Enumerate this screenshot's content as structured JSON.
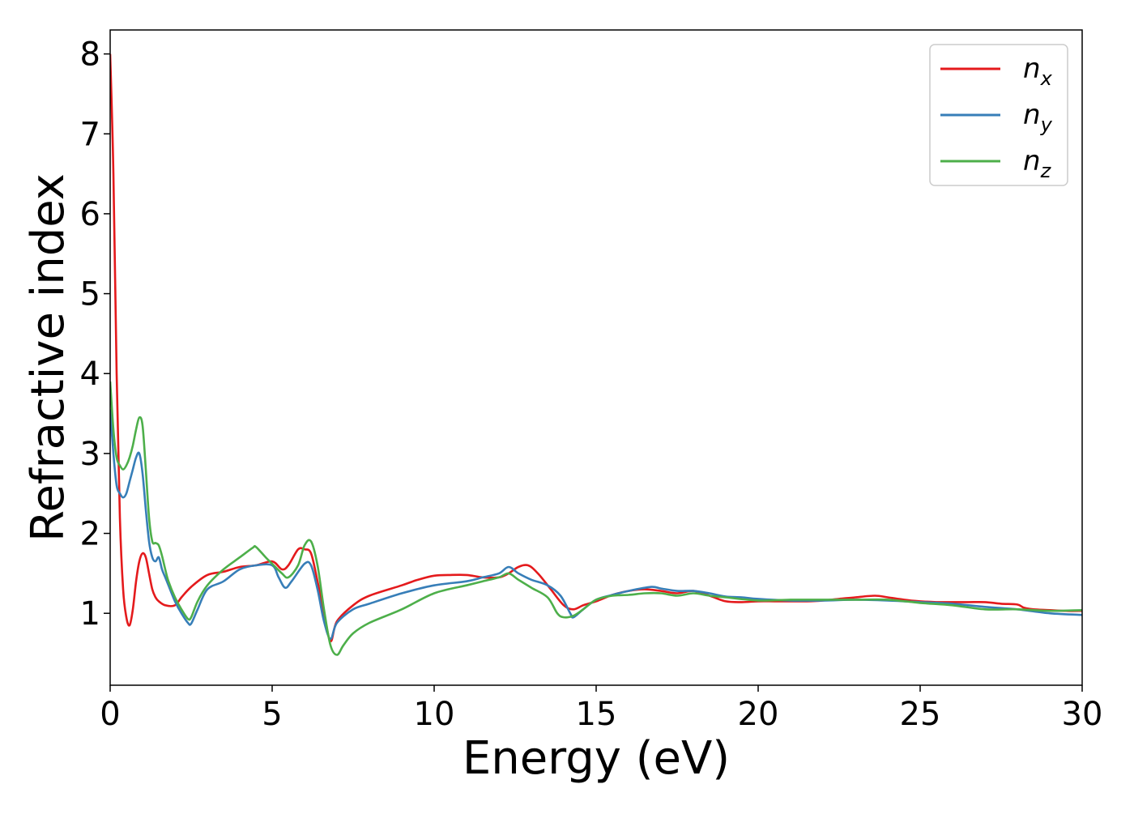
{
  "chart_data": {
    "type": "line",
    "title": "",
    "xlabel": "Energy (eV)",
    "ylabel": "Refractive index",
    "xlim": [
      0,
      30
    ],
    "ylim": [
      0.1,
      8.3
    ],
    "xticks": [
      "0",
      "5",
      "10",
      "15",
      "20",
      "25",
      "30"
    ],
    "yticks": [
      "1",
      "2",
      "3",
      "4",
      "5",
      "6",
      "7",
      "8"
    ],
    "grid": false,
    "legend_position": "top-right",
    "series": [
      {
        "name": "n_x",
        "legend_base": "n",
        "legend_sub": "x",
        "color": "#e41a1c",
        "x": [
          0.0,
          0.1,
          0.2,
          0.3,
          0.4,
          0.5,
          0.6,
          0.7,
          0.8,
          0.9,
          1.0,
          1.1,
          1.2,
          1.3,
          1.4,
          1.5,
          1.7,
          2.0,
          2.2,
          2.5,
          3.0,
          3.5,
          4.0,
          4.5,
          5.0,
          5.3,
          5.5,
          5.8,
          6.0,
          6.2,
          6.4,
          6.6,
          6.8,
          7.0,
          7.5,
          8.0,
          9.0,
          9.5,
          10.0,
          10.5,
          11.0,
          11.5,
          12.0,
          12.3,
          12.6,
          12.9,
          13.2,
          13.6,
          14.0,
          14.3,
          14.6,
          15.0,
          15.5,
          16.0,
          16.5,
          17.0,
          17.5,
          18.0,
          18.5,
          19.0,
          19.5,
          20.0,
          20.5,
          21.0,
          21.5,
          22.0,
          22.5,
          23.0,
          23.6,
          24.0,
          24.5,
          25.0,
          25.5,
          26.0,
          26.5,
          27.0,
          27.5,
          28.0,
          28.2,
          28.5,
          29.0,
          29.5,
          30.0
        ],
        "y": [
          8.0,
          6.5,
          4.0,
          2.2,
          1.3,
          0.95,
          0.85,
          1.05,
          1.4,
          1.65,
          1.75,
          1.7,
          1.5,
          1.3,
          1.2,
          1.15,
          1.1,
          1.1,
          1.2,
          1.33,
          1.48,
          1.52,
          1.58,
          1.6,
          1.65,
          1.55,
          1.6,
          1.8,
          1.8,
          1.75,
          1.4,
          1.0,
          0.65,
          0.9,
          1.1,
          1.22,
          1.35,
          1.42,
          1.47,
          1.48,
          1.48,
          1.45,
          1.45,
          1.5,
          1.58,
          1.6,
          1.5,
          1.3,
          1.1,
          1.05,
          1.1,
          1.15,
          1.23,
          1.28,
          1.3,
          1.28,
          1.25,
          1.28,
          1.22,
          1.15,
          1.14,
          1.15,
          1.15,
          1.15,
          1.15,
          1.16,
          1.18,
          1.2,
          1.22,
          1.2,
          1.17,
          1.15,
          1.14,
          1.14,
          1.14,
          1.14,
          1.12,
          1.11,
          1.07,
          1.05,
          1.04,
          1.03,
          1.03
        ]
      },
      {
        "name": "n_y",
        "legend_base": "n",
        "legend_sub": "y",
        "color": "#377eb8",
        "x": [
          0.0,
          0.1,
          0.2,
          0.3,
          0.4,
          0.5,
          0.6,
          0.7,
          0.8,
          0.9,
          1.0,
          1.1,
          1.2,
          1.3,
          1.4,
          1.5,
          1.6,
          1.7,
          1.8,
          2.0,
          2.2,
          2.4,
          2.5,
          2.7,
          3.0,
          3.5,
          4.0,
          4.5,
          5.0,
          5.2,
          5.4,
          5.6,
          6.0,
          6.2,
          6.4,
          6.6,
          6.8,
          7.0,
          7.5,
          8.0,
          9.0,
          10.0,
          11.0,
          11.5,
          12.0,
          12.3,
          12.6,
          13.0,
          13.5,
          13.9,
          14.2,
          14.3,
          14.6,
          15.0,
          15.5,
          16.0,
          16.7,
          17.0,
          17.5,
          18.0,
          18.5,
          19.0,
          19.5,
          20.0,
          21.0,
          22.0,
          23.0,
          24.0,
          25.0,
          26.0,
          27.0,
          28.0,
          29.0,
          30.0
        ],
        "y": [
          3.55,
          3.0,
          2.6,
          2.5,
          2.45,
          2.5,
          2.65,
          2.8,
          2.95,
          3.0,
          2.75,
          2.3,
          1.9,
          1.7,
          1.65,
          1.7,
          1.55,
          1.45,
          1.35,
          1.15,
          1.0,
          0.88,
          0.87,
          1.05,
          1.3,
          1.4,
          1.55,
          1.6,
          1.6,
          1.45,
          1.32,
          1.4,
          1.62,
          1.6,
          1.3,
          0.9,
          0.68,
          0.88,
          1.05,
          1.12,
          1.25,
          1.35,
          1.4,
          1.45,
          1.5,
          1.58,
          1.5,
          1.42,
          1.35,
          1.22,
          1.0,
          0.95,
          1.05,
          1.17,
          1.23,
          1.28,
          1.33,
          1.31,
          1.28,
          1.28,
          1.25,
          1.21,
          1.2,
          1.18,
          1.16,
          1.16,
          1.17,
          1.16,
          1.14,
          1.12,
          1.08,
          1.05,
          1.0,
          0.98
        ]
      },
      {
        "name": "n_z",
        "legend_base": "n",
        "legend_sub": "z",
        "color": "#4daf4a",
        "x": [
          0.0,
          0.1,
          0.2,
          0.3,
          0.4,
          0.5,
          0.6,
          0.7,
          0.8,
          0.9,
          1.0,
          1.1,
          1.2,
          1.3,
          1.4,
          1.5,
          1.6,
          1.7,
          1.8,
          2.0,
          2.2,
          2.4,
          2.5,
          2.7,
          3.0,
          3.5,
          4.0,
          4.4,
          4.5,
          4.8,
          5.0,
          5.3,
          5.5,
          5.8,
          6.0,
          6.2,
          6.4,
          6.6,
          6.8,
          7.0,
          7.2,
          7.5,
          8.0,
          9.0,
          10.0,
          11.0,
          11.5,
          12.0,
          12.3,
          12.6,
          13.0,
          13.5,
          13.8,
          14.0,
          14.3,
          14.6,
          15.0,
          15.5,
          16.0,
          16.5,
          17.0,
          17.5,
          18.0,
          18.5,
          19.0,
          20.0,
          21.0,
          22.0,
          23.0,
          24.0,
          25.0,
          26.0,
          27.0,
          28.0,
          29.0,
          30.0
        ],
        "y": [
          3.9,
          3.3,
          2.95,
          2.85,
          2.8,
          2.85,
          2.95,
          3.1,
          3.3,
          3.45,
          3.35,
          2.8,
          2.2,
          1.9,
          1.88,
          1.85,
          1.72,
          1.55,
          1.4,
          1.2,
          1.05,
          0.93,
          0.95,
          1.15,
          1.35,
          1.55,
          1.7,
          1.82,
          1.83,
          1.7,
          1.62,
          1.5,
          1.45,
          1.6,
          1.85,
          1.9,
          1.6,
          1.05,
          0.6,
          0.48,
          0.6,
          0.75,
          0.88,
          1.05,
          1.25,
          1.35,
          1.4,
          1.45,
          1.5,
          1.42,
          1.32,
          1.2,
          1.0,
          0.95,
          0.97,
          1.05,
          1.17,
          1.22,
          1.23,
          1.25,
          1.25,
          1.22,
          1.25,
          1.22,
          1.2,
          1.16,
          1.17,
          1.17,
          1.17,
          1.17,
          1.13,
          1.1,
          1.05,
          1.05,
          1.03,
          1.04
        ]
      }
    ]
  }
}
